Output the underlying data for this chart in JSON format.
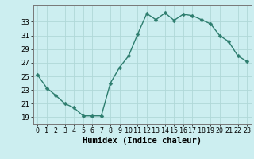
{
  "x": [
    0,
    1,
    2,
    3,
    4,
    5,
    6,
    7,
    8,
    9,
    10,
    11,
    12,
    13,
    14,
    15,
    16,
    17,
    18,
    19,
    20,
    21,
    22,
    23
  ],
  "y": [
    25.2,
    23.3,
    22.2,
    21.0,
    20.4,
    19.2,
    19.2,
    19.2,
    24.0,
    26.3,
    28.0,
    31.2,
    34.2,
    33.3,
    34.3,
    33.2,
    34.1,
    33.9,
    33.3,
    32.7,
    31.0,
    30.1,
    28.0,
    27.2
  ],
  "line_color": "#2d7d6e",
  "bg_color": "#cceef0",
  "grid_color": "#b0d8d8",
  "xlabel": "Humidex (Indice chaleur)",
  "ylabel_ticks": [
    19,
    21,
    23,
    25,
    27,
    29,
    31,
    33
  ],
  "ylim": [
    18.0,
    35.5
  ],
  "xlim": [
    -0.5,
    23.5
  ],
  "xtick_labels": [
    "0",
    "1",
    "2",
    "3",
    "4",
    "5",
    "6",
    "7",
    "8",
    "9",
    "10",
    "11",
    "12",
    "13",
    "14",
    "15",
    "16",
    "17",
    "18",
    "19",
    "20",
    "21",
    "22",
    "23"
  ],
  "xlabel_fontsize": 7.5,
  "tick_fontsize": 6.5,
  "marker_size": 2.5,
  "line_width": 1.0
}
